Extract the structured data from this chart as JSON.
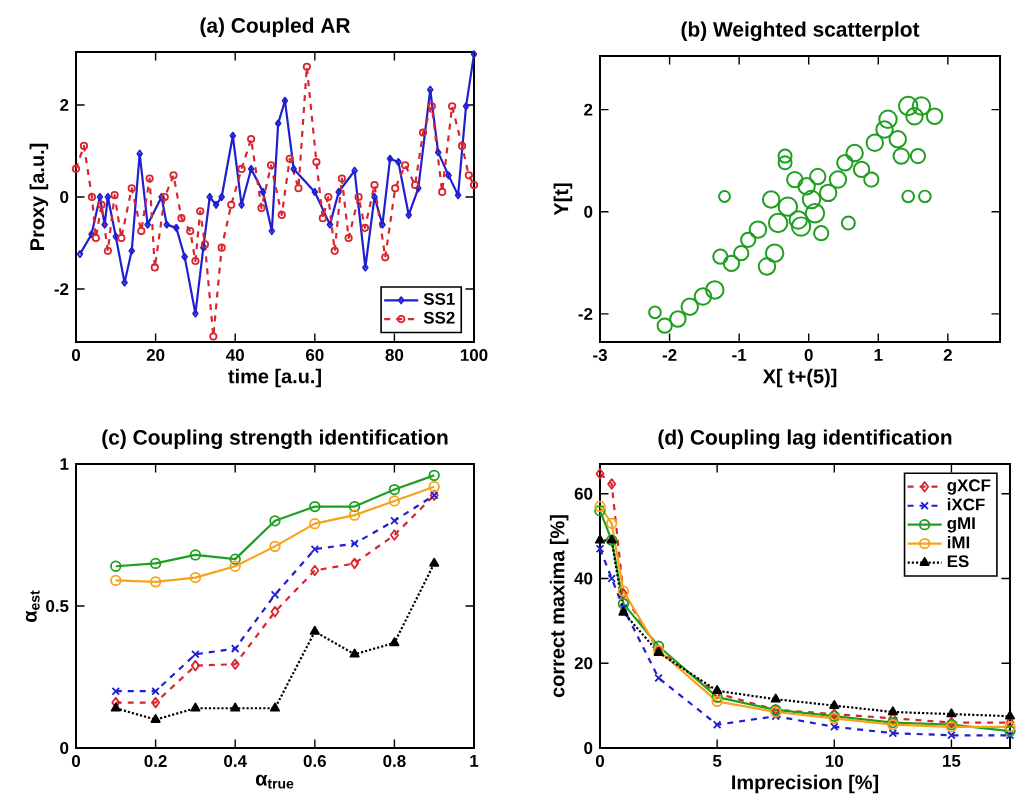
{
  "chart_data": [
    {
      "type": "line",
      "title": "(a) Coupled AR",
      "xlabel": "time [a.u.]",
      "ylabel": "Proxy [a.u.]",
      "xlim": [
        0,
        100
      ],
      "ylim": [
        -3.15,
        3.15
      ],
      "xticks": [
        0,
        20,
        40,
        60,
        80,
        100
      ],
      "yticks": [
        -2,
        0,
        2
      ],
      "legend": "bottom right",
      "series": [
        {
          "name": "SS1",
          "color": "#1f1fd0",
          "marker": "diamond",
          "line_style": "solid",
          "x": [
            1,
            3.9,
            6,
            7.2,
            8,
            10,
            12.2,
            14,
            16,
            18,
            21.5,
            22.8,
            25.2,
            27.3,
            30,
            32,
            33.6,
            35.2,
            36.6,
            39.4,
            41.6,
            44,
            47,
            49.2,
            50.8,
            52.5,
            54.7,
            60,
            63.8,
            66,
            70,
            72.7,
            75,
            77,
            78.9,
            81,
            83.6,
            86,
            89,
            91,
            93.6,
            96,
            98,
            100
          ],
          "values": [
            -1.24,
            -0.81,
            0,
            -0.6,
            0,
            -0.86,
            -1.86,
            -1.17,
            0.94,
            -0.6,
            0,
            -0.6,
            -0.67,
            -1.3,
            -2.53,
            -1.1,
            0,
            -0.17,
            0,
            1.33,
            -0.17,
            0.61,
            0.11,
            -0.74,
            1.6,
            2.09,
            0.61,
            0.11,
            -0.6,
            0.11,
            0.57,
            -1.53,
            0,
            -0.6,
            0.83,
            0.76,
            -0.39,
            0.19,
            2.33,
            0.97,
            0.47,
            0.04,
            1.97,
            3.1
          ]
        },
        {
          "name": "SS2",
          "color": "#d9262e",
          "marker": "circle",
          "line_style": "dashed",
          "x": [
            0,
            2,
            4,
            5,
            6.4,
            8,
            9.7,
            11.4,
            14,
            16.4,
            18.5,
            19.8,
            22.3,
            24.5,
            26.5,
            28.7,
            30,
            31.2,
            32.4,
            34.5,
            36.6,
            39,
            41.6,
            44,
            46.6,
            49,
            51.7,
            53.7,
            55.9,
            58,
            60.4,
            62,
            63.4,
            65,
            66.8,
            68.5,
            71,
            72.6,
            75,
            77.7,
            80.2,
            82.7,
            85.2,
            87.2,
            89.4,
            92,
            94.5,
            97,
            98.7,
            100
          ],
          "values": [
            0.61,
            1.11,
            0,
            -0.89,
            -0.17,
            -1.17,
            0.04,
            -0.89,
            0.19,
            -0.74,
            0.4,
            -1.53,
            0,
            0.47,
            -0.46,
            -0.74,
            -1.39,
            -0.31,
            -1.03,
            -3.03,
            -1.1,
            -0.17,
            0.61,
            1.26,
            -0.24,
            0.69,
            -0.39,
            0.83,
            0.19,
            2.83,
            0.76,
            -0.46,
            0,
            -1.17,
            0.4,
            -0.89,
            0,
            -0.67,
            0.26,
            -1.31,
            0.19,
            0.69,
            0.26,
            1.4,
            1.97,
            0.11,
            1.97,
            1.11,
            0.47,
            0.26
          ]
        }
      ]
    },
    {
      "type": "bubble",
      "title": "(b) Weighted scatterplot",
      "xlabel": "X[ t+(5)]",
      "ylabel": "Y[t]",
      "xlim": [
        -3,
        2.75
      ],
      "ylim": [
        -2.55,
        3.05
      ],
      "xticks": [
        -3,
        -2,
        -1,
        0,
        1,
        2
      ],
      "yticks": [
        -2,
        0,
        2
      ],
      "marker": "circle",
      "series": [
        {
          "color": "#1f9f1f",
          "x": [
            -2.21,
            -2.07,
            -1.88,
            -1.71,
            -1.52,
            -1.35,
            -1.21,
            -1.27,
            -1.11,
            -0.97,
            -0.87,
            -0.73,
            -0.6,
            -0.49,
            -0.54,
            -0.44,
            -0.34,
            -0.34,
            -0.3,
            -0.2,
            -0.15,
            -0.03,
            0.04,
            0.13,
            0.18,
            0.28,
            0.42,
            0.52,
            0.57,
            0.66,
            0.76,
            0.9,
            0.95,
            1.09,
            1.14,
            1.28,
            1.33,
            1.43,
            1.43,
            1.57,
            1.62,
            1.67,
            1.81,
            1.52,
            0.09,
            -0.11
          ],
          "values": [
            -1.97,
            -2.23,
            -2.1,
            -1.86,
            -1.66,
            -1.53,
            0.3,
            -0.88,
            -1.01,
            -0.81,
            -0.55,
            -0.35,
            -1.07,
            -0.81,
            0.24,
            -0.22,
            0.96,
            1.09,
            0.1,
            0.63,
            -0.16,
            0.5,
            0.24,
            0.69,
            -0.42,
            0.37,
            0.63,
            0.96,
            -0.22,
            1.15,
            0.83,
            0.63,
            1.35,
            1.61,
            1.81,
            1.42,
            1.09,
            2.07,
            0.3,
            1.09,
            2.07,
            0.3,
            1.87,
            1.87,
            -0.03,
            -0.29
          ],
          "sizes": [
            0.4,
            0.6,
            0.7,
            0.8,
            0.8,
            0.9,
            0.35,
            0.6,
            0.7,
            0.6,
            0.6,
            0.8,
            0.8,
            0.9,
            0.8,
            1,
            0.5,
            0.5,
            1,
            0.7,
            0.9,
            0.8,
            0.9,
            0.7,
            0.6,
            0.8,
            0.8,
            0.7,
            0.5,
            0.8,
            0.7,
            0.6,
            0.8,
            0.8,
            0.9,
            0.8,
            0.7,
            1,
            0.4,
            0.6,
            0.9,
            0.4,
            0.7,
            0.8,
            1,
            1
          ]
        }
      ]
    },
    {
      "type": "line",
      "title": "(c) Coupling strength identification",
      "xlabel": "α$_{true}$",
      "ylabel": "α$_{est}$",
      "xlim": [
        0,
        1
      ],
      "ylim": [
        0,
        1
      ],
      "xticks": [
        0,
        0.2,
        0.4,
        0.6,
        0.8,
        1
      ],
      "yticks": [
        0,
        0.5,
        1
      ],
      "x": [
        0.1,
        0.2,
        0.3,
        0.4,
        0.5,
        0.6,
        0.7,
        0.8,
        0.9
      ],
      "series": [
        {
          "color": "#d9262e",
          "marker": "diamond",
          "line_style": "dashed",
          "values": [
            0.16,
            0.16,
            0.29,
            0.295,
            0.48,
            0.625,
            0.65,
            0.75,
            0.89
          ]
        },
        {
          "color": "#1f1fd0",
          "marker": "cross",
          "line_style": "dashed",
          "values": [
            0.2,
            0.2,
            0.33,
            0.35,
            0.54,
            0.7,
            0.72,
            0.8,
            0.89
          ]
        },
        {
          "color": "#1f9f1f",
          "marker": "circle",
          "line_style": "solid",
          "values": [
            0.64,
            0.65,
            0.68,
            0.665,
            0.8,
            0.85,
            0.85,
            0.91,
            0.96
          ]
        },
        {
          "color": "#f7a21b",
          "marker": "circle",
          "line_style": "solid",
          "values": [
            0.59,
            0.585,
            0.6,
            0.64,
            0.71,
            0.79,
            0.82,
            0.87,
            0.92
          ]
        },
        {
          "color": "#000000",
          "marker": "triangle",
          "line_style": "dotted",
          "values": [
            0.14,
            0.1,
            0.14,
            0.14,
            0.14,
            0.41,
            0.33,
            0.37,
            0.65
          ]
        }
      ]
    },
    {
      "type": "line",
      "title": "(d) Coupling lag identification",
      "xlabel": "Imprecision [%]",
      "ylabel": "correct maxima [%]",
      "xlim": [
        0,
        17.5
      ],
      "ylim": [
        0,
        67
      ],
      "xticks": [
        0,
        5,
        10,
        15
      ],
      "yticks": [
        0,
        20,
        40,
        60
      ],
      "legend": "top right",
      "x": [
        0,
        0.5,
        1,
        2.5,
        5,
        7.5,
        10,
        12.5,
        15,
        17.5
      ],
      "series": [
        {
          "name": "gXCF",
          "color": "#d9262e",
          "marker": "diamond",
          "line_style": "dashed",
          "values": [
            64.7,
            62.3,
            36.4,
            23,
            12.9,
            9,
            8,
            7,
            6,
            6
          ]
        },
        {
          "name": "iXCF",
          "color": "#1f1fd0",
          "marker": "cross",
          "line_style": "dashed",
          "values": [
            47,
            40,
            33,
            16.5,
            5.5,
            7.5,
            5,
            3.5,
            3,
            3
          ]
        },
        {
          "name": "gMI",
          "color": "#1f9f1f",
          "marker": "circle",
          "line_style": "solid",
          "values": [
            56,
            49,
            34,
            24,
            12,
            9,
            7.5,
            6,
            5.5,
            4
          ]
        },
        {
          "name": "iMI",
          "color": "#f7a21b",
          "marker": "circle",
          "line_style": "solid",
          "values": [
            57,
            53,
            37,
            23,
            11,
            8.5,
            7,
            5.5,
            5,
            5
          ]
        },
        {
          "name": "ES",
          "color": "#000000",
          "marker": "triangle",
          "line_style": "dotted",
          "values": [
            49,
            49,
            32,
            22.5,
            13.5,
            11.5,
            10,
            8.5,
            8,
            7.5
          ]
        }
      ]
    }
  ]
}
